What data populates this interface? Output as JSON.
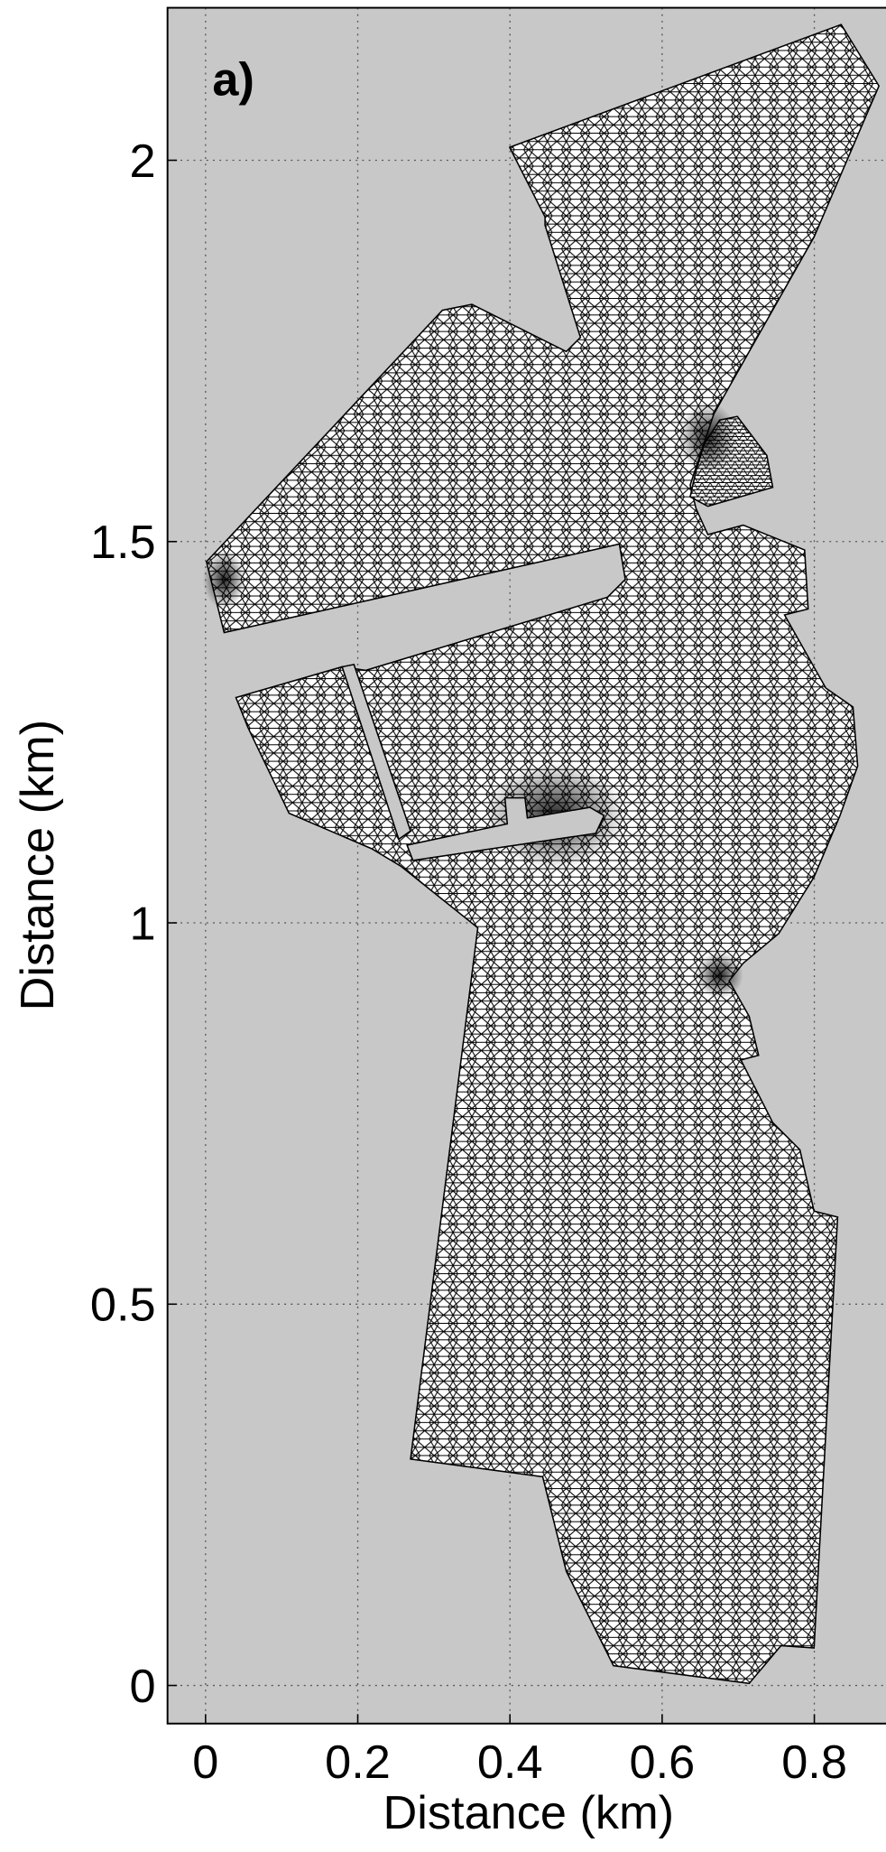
{
  "chart_data": {
    "type": "mesh",
    "annotation": "a)",
    "xlabel": "Distance (km)",
    "ylabel": "Distance (km)",
    "xlim": [
      -0.05,
      0.9
    ],
    "ylim": [
      -0.05,
      2.2
    ],
    "xticks": [
      0,
      0.2,
      0.4,
      0.6,
      0.8
    ],
    "yticks": [
      0,
      0.5,
      1,
      1.5,
      2
    ],
    "grid": true
  }
}
